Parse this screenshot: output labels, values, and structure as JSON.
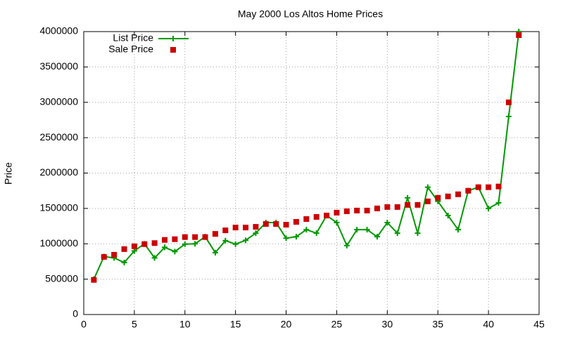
{
  "chart_data": {
    "type": "line",
    "title": "May 2000 Los Altos Home Prices",
    "y_label": "Price",
    "x": [
      1,
      2,
      3,
      4,
      5,
      6,
      7,
      8,
      9,
      10,
      11,
      12,
      13,
      14,
      15,
      16,
      17,
      18,
      19,
      20,
      21,
      22,
      23,
      24,
      25,
      26,
      27,
      28,
      29,
      30,
      31,
      32,
      33,
      34,
      35,
      36,
      37,
      38,
      39,
      40,
      41,
      42,
      43
    ],
    "series": [
      {
        "name": "List Price",
        "color": "#009900",
        "mode": "linespoints",
        "values": [
          500000,
          820000,
          800000,
          735000,
          900000,
          1000000,
          800000,
          950000,
          890000,
          995000,
          1000000,
          1100000,
          875000,
          1045000,
          995000,
          1050000,
          1150000,
          1300000,
          1300000,
          1080000,
          1100000,
          1200000,
          1150000,
          1400000,
          1300000,
          975000,
          1200000,
          1200000,
          1100000,
          1300000,
          1150000,
          1650000,
          1150000,
          1800000,
          1600000,
          1400000,
          1200000,
          1750000,
          1800000,
          1500000,
          1580000,
          2800000,
          4000000
        ]
      },
      {
        "name": "Sale Price",
        "color": "#cc0000",
        "mode": "points",
        "values": [
          490000,
          815000,
          845000,
          925000,
          965000,
          995000,
          1010000,
          1055000,
          1065000,
          1095000,
          1095000,
          1095000,
          1140000,
          1190000,
          1230000,
          1230000,
          1240000,
          1280000,
          1280000,
          1270000,
          1310000,
          1350000,
          1380000,
          1400000,
          1440000,
          1460000,
          1470000,
          1470000,
          1500000,
          1520000,
          1520000,
          1550000,
          1550000,
          1600000,
          1650000,
          1670000,
          1700000,
          1750000,
          1800000,
          1800000,
          1810000,
          3000000,
          3950000
        ]
      }
    ],
    "xlim": [
      0,
      45
    ],
    "xticks": [
      0,
      5,
      10,
      15,
      20,
      25,
      30,
      35,
      40,
      45
    ],
    "ylim": [
      0,
      4000000
    ],
    "yticks": [
      0,
      500000,
      1000000,
      1500000,
      2000000,
      2500000,
      3000000,
      3500000,
      4000000
    ],
    "grid": true,
    "legend": "top-left"
  }
}
